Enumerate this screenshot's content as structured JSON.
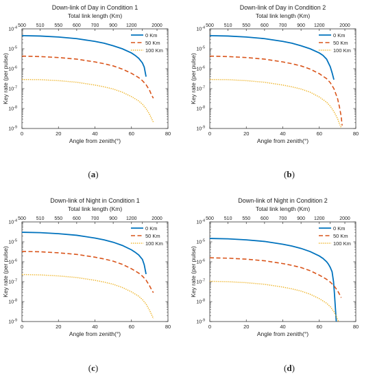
{
  "figure": {
    "colors": {
      "c0": "#0072BD",
      "c50": "#D95319",
      "c100": "#EDB120",
      "axis": "#333333",
      "text": "#222222"
    }
  },
  "chart_data": [
    {
      "id": "a",
      "label": "a",
      "type": "line",
      "title": "Down-link of Day in Condition 1",
      "top_axis_label": "Total link length (Km)",
      "top_ticks": {
        "positions": [
          0,
          10,
          20,
          30,
          40,
          50,
          60,
          66,
          74
        ],
        "labels": [
          "500",
          "510",
          "550",
          "600",
          "700",
          "900",
          "1200",
          "",
          "2000"
        ]
      },
      "xlabel": "Angle from zenith(°)",
      "ylabel": "Key rate (per pulse)",
      "xlim": [
        0,
        80
      ],
      "xticks": [
        0,
        20,
        40,
        60,
        80
      ],
      "ylim_exp": [
        -9,
        -4
      ],
      "ytick_exps": [
        -9,
        -8,
        -7,
        -6,
        -5,
        -4
      ],
      "ytick_base": "10",
      "legend_position": "top-right",
      "series": [
        {
          "name": "0 Km",
          "style": "solid",
          "color": "#0072BD",
          "x": [
            0,
            10,
            20,
            30,
            40,
            45,
            50,
            55,
            60,
            62,
            64,
            66,
            67,
            68
          ],
          "log10y": [
            -4.34,
            -4.36,
            -4.41,
            -4.49,
            -4.63,
            -4.72,
            -4.85,
            -5.0,
            -5.21,
            -5.33,
            -5.48,
            -5.71,
            -5.92,
            -6.4
          ]
        },
        {
          "name": "50 Km",
          "style": "dashed",
          "color": "#D95319",
          "x": [
            0,
            10,
            20,
            30,
            40,
            45,
            50,
            55,
            60,
            64,
            66,
            68,
            70,
            71,
            72
          ],
          "log10y": [
            -5.37,
            -5.39,
            -5.44,
            -5.52,
            -5.66,
            -5.75,
            -5.86,
            -6.02,
            -6.23,
            -6.45,
            -6.6,
            -6.8,
            -7.1,
            -7.32,
            -7.48
          ]
        },
        {
          "name": "100 Km",
          "style": "dotted",
          "color": "#EDB120",
          "x": [
            0,
            10,
            20,
            30,
            40,
            45,
            50,
            55,
            60,
            64,
            66,
            68,
            70,
            71,
            72
          ],
          "log10y": [
            -6.54,
            -6.55,
            -6.6,
            -6.68,
            -6.82,
            -6.91,
            -7.02,
            -7.18,
            -7.4,
            -7.62,
            -7.78,
            -8.0,
            -8.3,
            -8.5,
            -8.68
          ]
        }
      ]
    },
    {
      "id": "b",
      "label": "b",
      "type": "line",
      "title": "Down-link of Day in Condition 2",
      "top_axis_label": "Total link length (Km)",
      "top_ticks": {
        "positions": [
          0,
          10,
          20,
          30,
          40,
          50,
          60,
          66,
          74
        ],
        "labels": [
          "500",
          "510",
          "550",
          "600",
          "700",
          "900",
          "1200",
          "",
          "2000"
        ]
      },
      "xlabel": "Angle from zenith(°)",
      "ylabel": "Key rate (per pulse)",
      "xlim": [
        0,
        80
      ],
      "xticks": [
        0,
        20,
        40,
        60,
        80
      ],
      "ylim_exp": [
        -9,
        -4
      ],
      "ytick_exps": [
        -9,
        -8,
        -7,
        -6,
        -5,
        -4
      ],
      "ytick_base": "10",
      "legend_position": "top-right",
      "series": [
        {
          "name": "0 Km",
          "style": "solid",
          "color": "#0072BD",
          "x": [
            0,
            10,
            20,
            30,
            40,
            45,
            50,
            55,
            60,
            62,
            64,
            66,
            67,
            68
          ],
          "log10y": [
            -4.34,
            -4.36,
            -4.41,
            -4.49,
            -4.63,
            -4.72,
            -4.85,
            -5.0,
            -5.21,
            -5.33,
            -5.52,
            -5.9,
            -6.2,
            -6.55
          ]
        },
        {
          "name": "50 Km",
          "style": "dashed",
          "color": "#D95319",
          "x": [
            0,
            10,
            20,
            30,
            40,
            45,
            50,
            55,
            60,
            64,
            66,
            68,
            70,
            71,
            72,
            72.5
          ],
          "log10y": [
            -5.37,
            -5.39,
            -5.44,
            -5.52,
            -5.66,
            -5.75,
            -5.86,
            -6.02,
            -6.25,
            -6.5,
            -6.7,
            -7.0,
            -7.5,
            -7.9,
            -8.4,
            -8.85
          ]
        },
        {
          "name": "100 Km",
          "style": "dotted",
          "color": "#EDB120",
          "x": [
            0,
            10,
            20,
            30,
            40,
            45,
            50,
            55,
            60,
            64,
            66,
            68,
            70,
            71,
            72
          ],
          "log10y": [
            -6.54,
            -6.55,
            -6.6,
            -6.68,
            -6.82,
            -6.91,
            -7.02,
            -7.18,
            -7.42,
            -7.68,
            -7.88,
            -8.15,
            -8.5,
            -8.75,
            -8.95
          ]
        }
      ]
    },
    {
      "id": "c",
      "label": "c",
      "type": "line",
      "title": "Down-link of Night in Condition 1",
      "top_axis_label": "Total link length (Km)",
      "top_ticks": {
        "positions": [
          0,
          10,
          20,
          30,
          40,
          50,
          60,
          66,
          74
        ],
        "labels": [
          "500",
          "510",
          "550",
          "600",
          "700",
          "900",
          "1200",
          "",
          "2000"
        ]
      },
      "xlabel": "Angle from zenith(°)",
      "ylabel": "Key rate (per pulse)",
      "xlim": [
        0,
        80
      ],
      "xticks": [
        0,
        20,
        40,
        60,
        80
      ],
      "ylim_exp": [
        -9,
        -4
      ],
      "ytick_exps": [
        -9,
        -8,
        -7,
        -6,
        -5,
        -4
      ],
      "ytick_base": "10",
      "legend_position": "top-right",
      "series": [
        {
          "name": "0 Km",
          "style": "solid",
          "color": "#0072BD",
          "x": [
            0,
            10,
            20,
            30,
            40,
            45,
            50,
            55,
            60,
            62,
            64,
            66,
            67,
            68
          ],
          "log10y": [
            -4.52,
            -4.54,
            -4.59,
            -4.67,
            -4.81,
            -4.9,
            -5.02,
            -5.18,
            -5.4,
            -5.52,
            -5.66,
            -5.88,
            -6.15,
            -6.62
          ]
        },
        {
          "name": "50 Km",
          "style": "dashed",
          "color": "#D95319",
          "x": [
            0,
            10,
            20,
            30,
            40,
            45,
            50,
            55,
            60,
            64,
            66,
            68,
            70,
            71,
            72
          ],
          "log10y": [
            -5.48,
            -5.5,
            -5.55,
            -5.63,
            -5.77,
            -5.86,
            -5.97,
            -6.13,
            -6.35,
            -6.57,
            -6.72,
            -6.92,
            -7.22,
            -7.4,
            -7.55
          ]
        },
        {
          "name": "100 Km",
          "style": "dotted",
          "color": "#EDB120",
          "x": [
            0,
            10,
            20,
            30,
            40,
            45,
            50,
            55,
            60,
            64,
            66,
            68,
            70,
            71,
            72
          ],
          "log10y": [
            -6.64,
            -6.66,
            -6.71,
            -6.79,
            -6.93,
            -7.02,
            -7.13,
            -7.29,
            -7.51,
            -7.73,
            -7.9,
            -8.12,
            -8.45,
            -8.65,
            -8.85
          ]
        }
      ]
    },
    {
      "id": "d",
      "label": "d",
      "type": "line",
      "title": "Down-link of Night in Condition 2",
      "top_axis_label": "Total link length (Km)",
      "top_ticks": {
        "positions": [
          0,
          10,
          20,
          30,
          40,
          50,
          60,
          66,
          74
        ],
        "labels": [
          "500",
          "510",
          "550",
          "600",
          "700",
          "900",
          "1200",
          "",
          "2000"
        ]
      },
      "xlabel": "Angle from zenith(°)",
      "ylabel": "Key rate (per pulse)",
      "xlim": [
        0,
        80
      ],
      "xticks": [
        0,
        20,
        40,
        60,
        80
      ],
      "ylim_exp": [
        -9,
        -4
      ],
      "ytick_exps": [
        -9,
        -8,
        -7,
        -6,
        -5,
        -4
      ],
      "ytick_base": "10",
      "legend_position": "top-right",
      "series": [
        {
          "name": "0 Km",
          "style": "solid",
          "color": "#0072BD",
          "x": [
            0,
            10,
            20,
            30,
            40,
            45,
            50,
            55,
            60,
            62,
            64,
            65,
            66,
            67,
            67.8,
            68.3,
            68.8,
            69.3
          ],
          "log10y": [
            -4.83,
            -4.85,
            -4.9,
            -4.98,
            -5.12,
            -5.21,
            -5.33,
            -5.49,
            -5.71,
            -5.83,
            -6.0,
            -6.12,
            -6.28,
            -6.5,
            -7.0,
            -7.6,
            -8.3,
            -9.0
          ]
        },
        {
          "name": "50 Km",
          "style": "dashed",
          "color": "#D95319",
          "x": [
            0,
            10,
            20,
            30,
            40,
            45,
            50,
            55,
            60,
            64,
            66,
            68,
            70,
            71,
            72
          ],
          "log10y": [
            -5.8,
            -5.82,
            -5.87,
            -5.95,
            -6.09,
            -6.18,
            -6.29,
            -6.45,
            -6.67,
            -6.88,
            -7.02,
            -7.2,
            -7.45,
            -7.62,
            -7.8
          ]
        },
        {
          "name": "100 Km",
          "style": "dotted",
          "color": "#EDB120",
          "x": [
            0,
            10,
            20,
            30,
            40,
            45,
            50,
            55,
            60,
            64,
            66,
            68,
            69,
            70,
            70.5
          ],
          "log10y": [
            -6.98,
            -7.0,
            -7.05,
            -7.13,
            -7.27,
            -7.36,
            -7.47,
            -7.63,
            -7.85,
            -8.08,
            -8.25,
            -8.5,
            -8.68,
            -8.88,
            -9.0
          ]
        }
      ]
    }
  ]
}
